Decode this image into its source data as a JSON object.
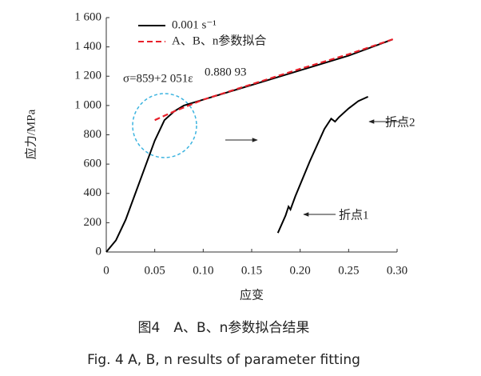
{
  "chart_data": {
    "type": "line",
    "xlabel": "应变",
    "ylabel": "应力/MPa",
    "xlim": [
      0,
      0.3
    ],
    "ylim": [
      0,
      1600
    ],
    "xticks": [
      0,
      0.05,
      {
        "value": 0.1,
        "label": "0.10"
      },
      0.15,
      {
        "value": 0.2,
        "label": "0.20"
      },
      0.25,
      {
        "value": 0.3,
        "label": "0.30"
      }
    ],
    "yticks": [
      0,
      200,
      400,
      600,
      800,
      {
        "value": 1000,
        "label": "1 000"
      },
      {
        "value": 1200,
        "label": "1 200"
      },
      {
        "value": 1400,
        "label": "1 400"
      },
      {
        "value": 1600,
        "label": "1 600"
      }
    ],
    "legend": "upper left",
    "series": [
      {
        "name": "0.001 s⁻¹",
        "color": "#000000",
        "dashed": false,
        "x": [
          0,
          0.01,
          0.02,
          0.03,
          0.04,
          0.05,
          0.06,
          0.07,
          0.08,
          0.1,
          0.15,
          0.2,
          0.25,
          0.295,
          null,
          0.177,
          0.185,
          0.188,
          0.19,
          0.195,
          0.21,
          0.225,
          0.232,
          0.236,
          0.24,
          0.25,
          0.26,
          0.27
        ],
        "values": [
          0,
          80,
          220,
          400,
          580,
          760,
          900,
          960,
          1000,
          1040,
          1140,
          1240,
          1340,
          1450,
          null,
          130,
          250,
          310,
          290,
          380,
          620,
          840,
          910,
          890,
          920,
          980,
          1030,
          1060
        ]
      },
      {
        "name": "A、B、n参数拟合",
        "color": "#e8202a",
        "dashed": true,
        "x": [
          0.05,
          0.07,
          0.1,
          0.15,
          0.2,
          0.25,
          0.297
        ],
        "values": [
          900,
          960,
          1040,
          1145,
          1250,
          1350,
          1455
        ]
      }
    ],
    "annotations": {
      "equation": "σ=859+2 051ε",
      "equation_exponent": "0.880 93",
      "point2": "折点2",
      "point1": "折点1"
    }
  },
  "caption": {
    "cn": "图4　A、B、n参数拟合结果",
    "en": "Fig. 4 A, B, n results of parameter fitting"
  }
}
